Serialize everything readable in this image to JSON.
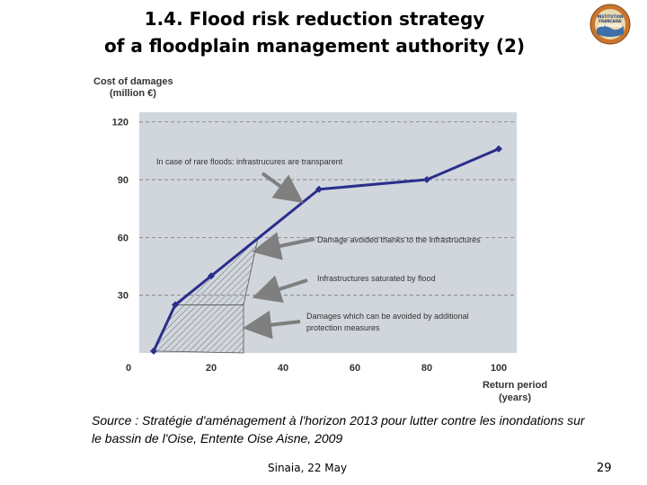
{
  "slide": {
    "title_line1": "1.4. Flood risk reduction strategy",
    "title_line2": "of a floodplain management authority (2)",
    "logo_text_line1": "INSTITUTION",
    "logo_text_line2": "FRANCAISE",
    "logo_text_line3": "DE RIVIERE",
    "source": "Source : Stratégie d'aménagement à l'horizon 2013 pour lutter contre les inondations sur le bassin de l'Oise, Entente Oise Aisne, 2009",
    "footer": "Sinaia, 22 May",
    "page_number": "29"
  },
  "colors": {
    "plot_bg": "#d0d6dc",
    "line": "#2a2e8c",
    "arrow": "#7f7f7f",
    "grid": "#7a7a7a"
  },
  "chart_data": {
    "type": "line",
    "ylabel_line1": "Cost of damages",
    "ylabel_line2": "(million €)",
    "xlabel_line1": "Return period",
    "xlabel_line2": "(years)",
    "xlim": [
      0,
      105
    ],
    "ylim": [
      0,
      125
    ],
    "x_ticks": [
      0,
      20,
      40,
      60,
      80,
      100
    ],
    "y_ticks": [
      30,
      60,
      90,
      120
    ],
    "series": [
      {
        "name": "Cost of damages",
        "x": [
          4,
          10,
          20,
          50,
          80,
          100
        ],
        "y": [
          1,
          25,
          40,
          85,
          90,
          106
        ]
      }
    ],
    "annotations": [
      "In case of rare floods: infrastrucures are transparent",
      "Damage avoided thanks to the infrastructures",
      "Infrastructures saturated by flood",
      "Damages which can be avoided by additional",
      "protection measures"
    ]
  }
}
